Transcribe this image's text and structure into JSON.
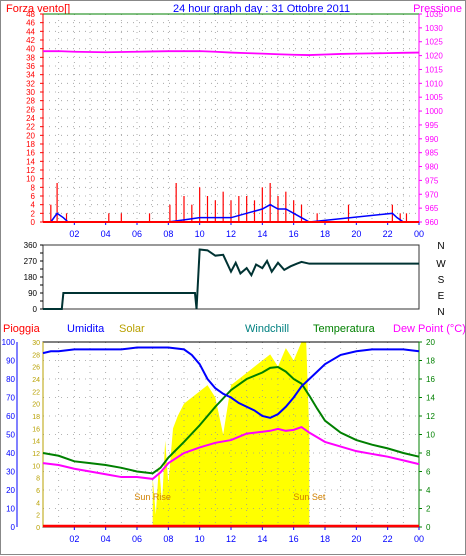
{
  "chart_data": [
    {
      "type": "line",
      "title": "24 hour graph day : 31 Ottobre 2011",
      "left_axis_label": "Forza vento[]",
      "right_axis_label": "Pressione",
      "x_ticks": [
        "02",
        "04",
        "06",
        "08",
        "10",
        "12",
        "14",
        "16",
        "18",
        "20",
        "22",
        "00"
      ],
      "xlim": [
        0,
        24
      ],
      "left_ylim": [
        0,
        48
      ],
      "left_yticks": [
        0,
        2,
        4,
        6,
        8,
        10,
        12,
        14,
        16,
        18,
        20,
        22,
        24,
        26,
        28,
        30,
        32,
        34,
        36,
        38,
        40,
        42,
        44,
        46,
        48
      ],
      "right_ylim": [
        960,
        1035
      ],
      "right_yticks": [
        960,
        965,
        970,
        975,
        980,
        985,
        990,
        995,
        1000,
        1005,
        1010,
        1015,
        1020,
        1025,
        1030,
        1035
      ],
      "grid": true,
      "colors": {
        "gust": "#ff0000",
        "wind": "#0000ff",
        "pressure": "#ff00ff",
        "frame": "#008000"
      },
      "pressure": {
        "x": [
          0,
          1,
          2,
          3,
          4,
          5,
          6,
          7,
          8,
          9,
          10,
          11,
          12,
          13,
          14,
          15,
          16,
          17,
          18,
          19,
          20,
          21,
          22,
          23,
          24
        ],
        "y": [
          1021.6,
          1021.6,
          1021.4,
          1021.3,
          1021.2,
          1021.3,
          1021.4,
          1021.5,
          1021.6,
          1021.6,
          1021.6,
          1021.4,
          1021.1,
          1020.9,
          1020.7,
          1020.5,
          1020.3,
          1020.2,
          1020.4,
          1020.6,
          1020.7,
          1020.8,
          1020.9,
          1021.0,
          1021.1
        ]
      },
      "wind_gust_knots": {
        "x": [
          0.5,
          0.9,
          1.5,
          4.2,
          5.0,
          6.8,
          8.1,
          8.5,
          9.0,
          9.5,
          10.0,
          10.5,
          11.0,
          11.5,
          12.0,
          12.5,
          13.0,
          13.5,
          14.0,
          14.5,
          15.0,
          15.5,
          16.0,
          16.5,
          17.5,
          19.5,
          22.3,
          22.8,
          23.2
        ],
        "y": [
          4,
          9,
          2,
          2,
          2,
          2,
          4,
          9,
          6,
          4,
          8,
          6,
          5,
          7,
          5,
          6,
          6,
          5,
          8,
          9,
          6,
          7,
          5,
          4,
          2,
          4,
          4,
          2,
          2
        ]
      },
      "wind_avg_knots": {
        "x": [
          0.5,
          0.9,
          1.3,
          1.6,
          8.0,
          9.0,
          10.0,
          11.0,
          12.0,
          13.0,
          14.0,
          14.5,
          15.0,
          15.5,
          16.0,
          16.5,
          17.0,
          22.3,
          22.6,
          23.0
        ],
        "y": [
          0,
          2,
          1,
          0,
          0,
          0.5,
          1,
          1,
          1,
          2,
          3,
          4,
          3,
          3,
          2,
          1,
          0,
          2,
          1,
          0
        ]
      }
    },
    {
      "type": "line",
      "compass_labels": [
        "N",
        "W",
        "S",
        "E",
        "N"
      ],
      "x_ticks": [
        "02",
        "04",
        "06",
        "08",
        "10",
        "12",
        "14",
        "16",
        "18",
        "20",
        "22",
        "00"
      ],
      "xlim": [
        0,
        24
      ],
      "ylim": [
        0,
        360
      ],
      "yticks": [
        0,
        45,
        90,
        135,
        180,
        225,
        270,
        315,
        360
      ],
      "series_color": "#003333",
      "wind_direction_deg": {
        "x": [
          0,
          1.2,
          1.3,
          9.7,
          9.8,
          10.0,
          10.5,
          11.0,
          11.5,
          12.0,
          12.3,
          12.6,
          13.0,
          13.3,
          13.6,
          14.0,
          14.3,
          14.6,
          15.0,
          15.4,
          15.8,
          16.2,
          16.5,
          17.0,
          18,
          24
        ],
        "y": [
          0,
          0,
          90,
          90,
          0,
          335,
          330,
          300,
          305,
          210,
          260,
          200,
          230,
          190,
          250,
          230,
          270,
          210,
          260,
          220,
          240,
          255,
          265,
          255,
          255,
          255
        ]
      }
    },
    {
      "type": "line",
      "labels": {
        "rain": "Pioggia",
        "humidity": "Umidita",
        "solar": "Solar",
        "windchill": "Windchill",
        "temperature": "Temperatura",
        "dewpoint": "Dew Point (°C)",
        "sunrise": "Sun Rise",
        "sunset": "Sun Set"
      },
      "x_ticks": [
        "02",
        "04",
        "06",
        "08",
        "10",
        "12",
        "14",
        "16",
        "18",
        "20",
        "22",
        "00"
      ],
      "xlim": [
        0,
        24
      ],
      "humidity_ylim": [
        0,
        100
      ],
      "humidity_yticks": [
        0,
        10,
        20,
        30,
        40,
        50,
        60,
        70,
        80,
        90,
        100
      ],
      "solar_ylim": [
        0,
        30
      ],
      "solar_yticks": [
        0,
        2,
        4,
        6,
        8,
        10,
        12,
        14,
        16,
        18,
        20,
        22,
        24,
        26,
        28,
        30
      ],
      "temp_ylim": [
        0,
        20
      ],
      "temp_yticks": [
        0,
        2,
        4,
        6,
        8,
        10,
        12,
        14,
        16,
        18,
        20
      ],
      "grid": true,
      "colors": {
        "humidity": "#0000ff",
        "solar": "#ffff00",
        "temperature": "#008000",
        "dewpoint": "#ff00ff",
        "rain": "#ff0000",
        "windchill": "#ffa500"
      },
      "sunrise_hour": 7.0,
      "sunset_hour": 17.0,
      "humidity": {
        "x": [
          0,
          0.5,
          1,
          2,
          3,
          4,
          5,
          6,
          7,
          8,
          9,
          9.5,
          10,
          10.5,
          11,
          11.5,
          12,
          12.5,
          13,
          13.5,
          14,
          14.5,
          15,
          15.5,
          16,
          16.5,
          17,
          17.5,
          18,
          19,
          20,
          21,
          22,
          23,
          24
        ],
        "y": [
          94,
          95,
          95,
          96,
          96,
          96,
          96,
          97,
          97,
          97,
          96,
          93,
          88,
          80,
          75,
          72,
          70,
          67,
          65,
          63,
          60,
          59,
          61,
          65,
          70,
          76,
          80,
          84,
          88,
          93,
          95,
          96,
          96,
          96,
          95
        ]
      },
      "temperature": {
        "x": [
          0,
          1,
          2,
          3,
          4,
          5,
          6,
          7,
          7.5,
          8,
          9,
          10,
          11,
          12,
          13,
          14,
          14.5,
          15,
          15.5,
          16,
          16.5,
          17,
          17.5,
          18,
          19,
          20,
          21,
          22,
          23,
          24
        ],
        "y": [
          8,
          7.7,
          7.1,
          6.9,
          6.7,
          6.4,
          6.0,
          5.8,
          6.4,
          7.5,
          9.2,
          11,
          13,
          14.8,
          16.0,
          16.7,
          17.2,
          17.3,
          16.8,
          16.0,
          15.5,
          14.2,
          12.8,
          11.5,
          10.2,
          9.4,
          8.9,
          8.5,
          8.0,
          7.6
        ]
      },
      "dewpoint": {
        "x": [
          0,
          1,
          2,
          3,
          4,
          5,
          6,
          7,
          7.5,
          8,
          9,
          10,
          11,
          12,
          13,
          14,
          14.5,
          15,
          15.5,
          16,
          16.5,
          17,
          17.5,
          18,
          19,
          20,
          21,
          22,
          23,
          24
        ],
        "y": [
          6.9,
          6.7,
          6.3,
          6.0,
          5.7,
          5.4,
          5.4,
          5.2,
          5.9,
          6.9,
          8.0,
          8.6,
          9.1,
          9.4,
          10.1,
          10.3,
          10.4,
          10.6,
          10.4,
          10.5,
          10.8,
          10.2,
          9.7,
          9.2,
          8.7,
          8.2,
          7.9,
          7.6,
          7.2,
          6.8
        ]
      },
      "solar": {
        "x": [
          7.0,
          7.2,
          7.4,
          7.6,
          7.8,
          8.0,
          8.3,
          8.6,
          9.0,
          9.5,
          10.0,
          10.5,
          11.0,
          11.5,
          12.0,
          12.5,
          13.0,
          13.5,
          14.0,
          14.5,
          15.0,
          15.5,
          16.0,
          16.5,
          16.8,
          17.0
        ],
        "y": [
          8,
          2,
          10,
          4,
          14,
          7,
          16,
          18,
          20,
          21,
          22,
          23,
          21,
          15,
          23,
          24,
          25,
          26,
          27,
          28,
          26,
          29,
          27,
          30,
          30,
          15
        ]
      },
      "rain": {
        "x": [
          0,
          24
        ],
        "y": [
          0,
          0
        ]
      }
    }
  ]
}
